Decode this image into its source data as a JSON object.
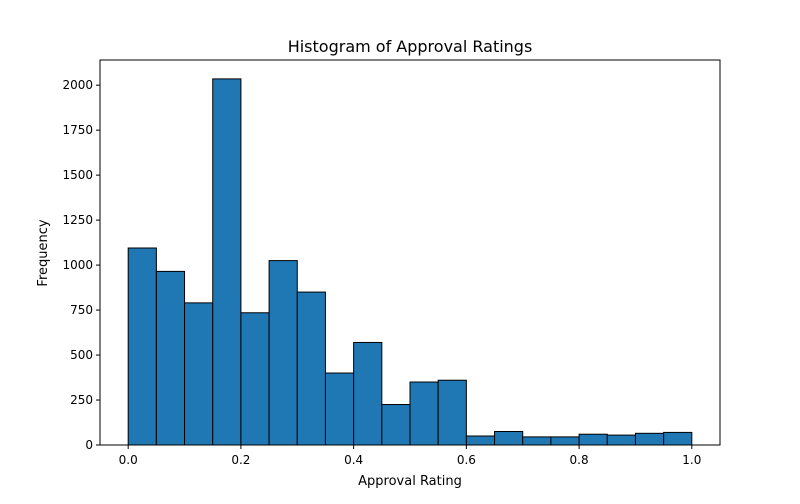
{
  "chart_data": {
    "type": "bar",
    "title": "Histogram of Approval Ratings",
    "xlabel": "Approval Rating",
    "ylabel": "Frequency",
    "bin_edges": [
      0.0,
      0.05,
      0.1,
      0.15,
      0.2,
      0.25,
      0.3,
      0.35,
      0.4,
      0.45,
      0.5,
      0.55,
      0.6,
      0.65,
      0.7,
      0.75,
      0.8,
      0.85,
      0.9,
      0.95,
      1.0
    ],
    "values": [
      1095,
      965,
      790,
      2035,
      735,
      1025,
      850,
      400,
      570,
      225,
      350,
      360,
      50,
      75,
      45,
      45,
      60,
      55,
      65,
      70
    ],
    "xlim": [
      -0.05,
      1.05
    ],
    "ylim": [
      0,
      2140
    ],
    "xticks": [
      0.0,
      0.2,
      0.4,
      0.6,
      0.8,
      1.0
    ],
    "xtick_labels": [
      "0.0",
      "0.2",
      "0.4",
      "0.6",
      "0.8",
      "1.0"
    ],
    "yticks": [
      0,
      250,
      500,
      750,
      1000,
      1250,
      1500,
      1750,
      2000
    ],
    "ytick_labels": [
      "0",
      "250",
      "500",
      "750",
      "1000",
      "1250",
      "1500",
      "1750",
      "2000"
    ],
    "bar_color": "#1f77b4",
    "edge_color": "#000000",
    "grid": false,
    "legend": "none"
  }
}
